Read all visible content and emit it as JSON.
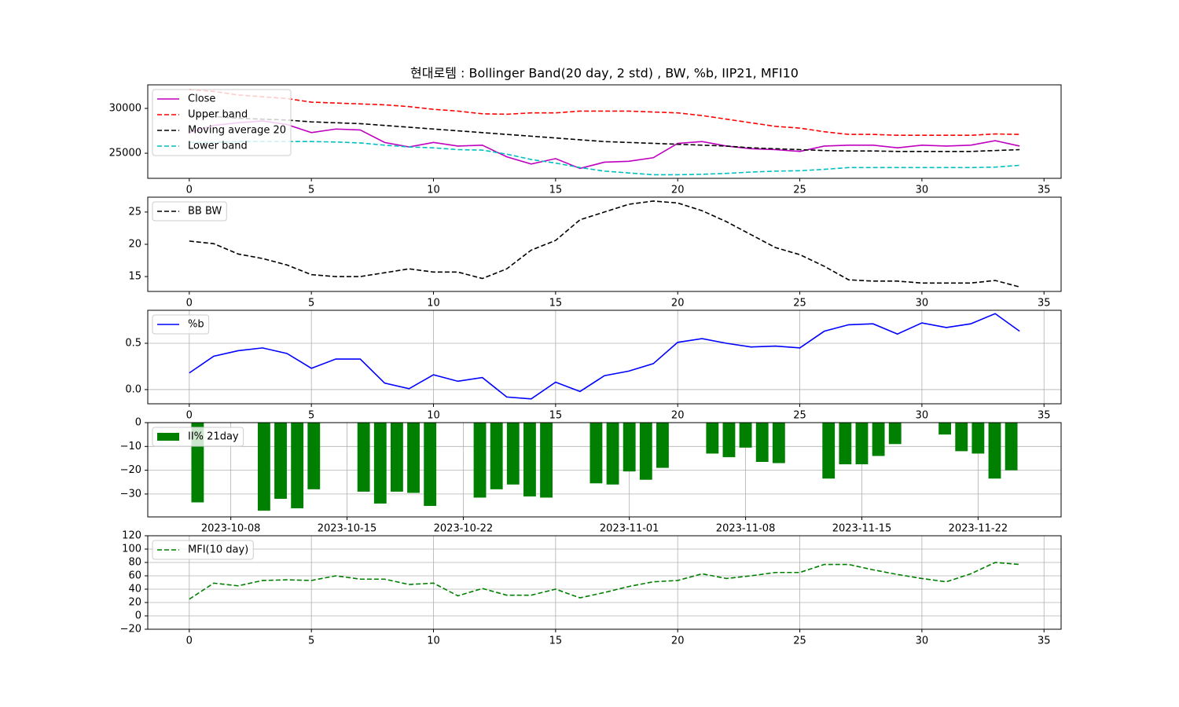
{
  "title": "현대로템 : Bollinger Band(20 day, 2 std) , BW, %b, IIP21, MFI10",
  "chart_data": [
    {
      "type": "line",
      "legend": "upper left",
      "grid": false,
      "x": [
        0,
        1,
        2,
        3,
        4,
        5,
        6,
        7,
        8,
        9,
        10,
        11,
        12,
        13,
        14,
        15,
        16,
        17,
        18,
        19,
        20,
        21,
        22,
        23,
        24,
        25,
        26,
        27,
        28,
        29,
        30,
        31,
        32,
        33,
        34
      ],
      "xlim": [
        -1.7,
        35.7
      ],
      "xticks": [
        0,
        5,
        10,
        15,
        20,
        25,
        30,
        35
      ],
      "ylim": [
        22200,
        32630
      ],
      "yticks": [
        25000,
        30000
      ],
      "series": [
        {
          "name": "Close",
          "color": "#bf00bf",
          "linestyle": "solid",
          "values": [
            27300,
            28100,
            28400,
            28600,
            28200,
            27300,
            27700,
            27600,
            26200,
            25700,
            26200,
            25800,
            25900,
            24600,
            23800,
            24400,
            23300,
            24000,
            24100,
            24500,
            26100,
            26300,
            25800,
            25500,
            25400,
            25200,
            25800,
            25900,
            25900,
            25600,
            25900,
            25800,
            25900,
            26400,
            25800
          ]
        },
        {
          "name": "Upper band",
          "color": "#ff0000",
          "linestyle": "dashed",
          "values": [
            32100,
            31900,
            31500,
            31300,
            31100,
            30700,
            30600,
            30500,
            30400,
            30200,
            29900,
            29700,
            29400,
            29350,
            29500,
            29500,
            29700,
            29700,
            29700,
            29600,
            29500,
            29200,
            28800,
            28400,
            28000,
            27800,
            27400,
            27100,
            27100,
            27000,
            27000,
            27000,
            27000,
            27150,
            27100
          ]
        },
        {
          "name": "Moving average 20",
          "color": "#000000",
          "linestyle": "dashed",
          "values": [
            29200,
            29100,
            28900,
            28800,
            28700,
            28500,
            28400,
            28300,
            28100,
            27900,
            27700,
            27500,
            27300,
            27100,
            26900,
            26700,
            26500,
            26300,
            26200,
            26100,
            26000,
            25900,
            25800,
            25600,
            25500,
            25400,
            25300,
            25250,
            25250,
            25200,
            25200,
            25200,
            25200,
            25300,
            25400
          ]
        },
        {
          "name": "Lower band",
          "color": "#00bfbf",
          "linestyle": "dashed",
          "values": [
            26200,
            26200,
            26300,
            26300,
            26300,
            26300,
            26250,
            26150,
            25900,
            25700,
            25600,
            25400,
            25350,
            24900,
            24300,
            23900,
            23400,
            23000,
            22800,
            22600,
            22600,
            22650,
            22750,
            22900,
            23000,
            23050,
            23200,
            23400,
            23400,
            23400,
            23400,
            23400,
            23400,
            23450,
            23650
          ]
        }
      ]
    },
    {
      "type": "line",
      "legend": "upper left",
      "grid": false,
      "x": [
        0,
        1,
        2,
        3,
        4,
        5,
        6,
        7,
        8,
        9,
        10,
        11,
        12,
        13,
        14,
        15,
        16,
        17,
        18,
        19,
        20,
        21,
        22,
        23,
        24,
        25,
        26,
        27,
        28,
        29,
        30,
        31,
        32,
        33,
        34
      ],
      "xlim": [
        -1.7,
        35.7
      ],
      "xticks": [
        0,
        5,
        10,
        15,
        20,
        25,
        30,
        35
      ],
      "ylim": [
        12.7,
        27.3
      ],
      "yticks": [
        15,
        20,
        25
      ],
      "series": [
        {
          "name": "BB BW",
          "color": "#000000",
          "linestyle": "dashed",
          "values": [
            20.5,
            20.1,
            18.5,
            17.8,
            16.8,
            15.3,
            15.0,
            15.0,
            15.6,
            16.2,
            15.7,
            15.7,
            14.7,
            16.2,
            19.1,
            20.6,
            23.8,
            25.0,
            26.2,
            26.7,
            26.4,
            25.2,
            23.5,
            21.5,
            19.5,
            18.4,
            16.6,
            14.5,
            14.3,
            14.3,
            14.0,
            14.0,
            14.0,
            14.4,
            13.4
          ]
        }
      ]
    },
    {
      "type": "line",
      "legend": "upper left",
      "grid": true,
      "x": [
        0,
        1,
        2,
        3,
        4,
        5,
        6,
        7,
        8,
        9,
        10,
        11,
        12,
        13,
        14,
        15,
        16,
        17,
        18,
        19,
        20,
        21,
        22,
        23,
        24,
        25,
        26,
        27,
        28,
        29,
        30,
        31,
        32,
        33,
        34
      ],
      "xlim": [
        -1.7,
        35.7
      ],
      "xticks": [
        0,
        5,
        10,
        15,
        20,
        25,
        30,
        35
      ],
      "ylim": [
        -0.153,
        0.856
      ],
      "yticks": [
        {
          "value": 0,
          "label": "0.0"
        },
        0.5
      ],
      "series": [
        {
          "name": "%b",
          "color": "#0000ff",
          "linestyle": "solid",
          "values": [
            0.18,
            0.36,
            0.42,
            0.45,
            0.39,
            0.23,
            0.33,
            0.33,
            0.07,
            0.01,
            0.16,
            0.09,
            0.13,
            -0.08,
            -0.1,
            0.08,
            -0.02,
            0.15,
            0.2,
            0.28,
            0.51,
            0.55,
            0.5,
            0.46,
            0.47,
            0.45,
            0.63,
            0.7,
            0.71,
            0.6,
            0.72,
            0.67,
            0.71,
            0.82,
            0.63
          ]
        }
      ]
    },
    {
      "type": "bar",
      "legend": "upper left",
      "grid": true,
      "x": [
        "2023-10-06",
        "2023-10-10",
        "2023-10-11",
        "2023-10-12",
        "2023-10-13",
        "2023-10-16",
        "2023-10-17",
        "2023-10-18",
        "2023-10-19",
        "2023-10-20",
        "2023-10-23",
        "2023-10-24",
        "2023-10-25",
        "2023-10-26",
        "2023-10-27",
        "2023-10-30",
        "2023-10-31",
        "2023-11-01",
        "2023-11-02",
        "2023-11-03",
        "2023-11-06",
        "2023-11-07",
        "2023-11-08",
        "2023-11-09",
        "2023-11-10",
        "2023-11-13",
        "2023-11-14",
        "2023-11-15",
        "2023-11-16",
        "2023-11-17",
        "2023-11-20",
        "2023-11-21",
        "2023-11-22",
        "2023-11-23",
        "2023-11-24"
      ],
      "xlim": [
        "2023-10-03",
        "2023-11-27"
      ],
      "xticks": [
        "2023-10-08",
        "2023-10-15",
        "2023-10-22",
        "2023-11-01",
        "2023-11-08",
        "2023-11-15",
        "2023-11-22"
      ],
      "ylim": [
        -39.6,
        0
      ],
      "yticks": [
        0,
        {
          "value": -10,
          "label": "−10"
        },
        {
          "value": -20,
          "label": "−20"
        },
        {
          "value": -30,
          "label": "−30"
        }
      ],
      "series": [
        {
          "name": "II% 21day",
          "color": "#008000",
          "values": [
            -33.5,
            -37,
            -32,
            -36,
            -28,
            -29,
            -34,
            -29,
            -29.5,
            -35,
            -31.5,
            -28,
            -26,
            -31,
            -31.5,
            -25.5,
            -26,
            -20.5,
            -24,
            -19,
            -13,
            -14.5,
            -10.5,
            -16.5,
            -17,
            -23.5,
            -17.5,
            -17.5,
            -14,
            -9,
            -5,
            -12,
            -13,
            -23.5,
            -20
          ]
        }
      ]
    },
    {
      "type": "line",
      "legend": "upper left",
      "grid": true,
      "x": [
        0,
        1,
        2,
        3,
        4,
        5,
        6,
        7,
        8,
        9,
        10,
        11,
        12,
        13,
        14,
        15,
        16,
        17,
        18,
        19,
        20,
        21,
        22,
        23,
        24,
        25,
        26,
        27,
        28,
        29,
        30,
        31,
        32,
        33,
        34
      ],
      "xlim": [
        -1.7,
        35.7
      ],
      "xticks": [
        0,
        5,
        10,
        15,
        20,
        25,
        30,
        35
      ],
      "ylim": [
        -20,
        120
      ],
      "yticks": [
        {
          "value": -20,
          "label": "−20"
        },
        0,
        20,
        40,
        60,
        80,
        100,
        120
      ],
      "series": [
        {
          "name": "MFI(10 day)",
          "color": "#008000",
          "linestyle": "dashed",
          "values": [
            25,
            49,
            45,
            53,
            54,
            53,
            60,
            55,
            55,
            47,
            49,
            30,
            41,
            31,
            31,
            40,
            27,
            35,
            44,
            51,
            53,
            63,
            56,
            60,
            65,
            65,
            77,
            77,
            69,
            62,
            56,
            51,
            63,
            80,
            77
          ]
        }
      ]
    }
  ]
}
